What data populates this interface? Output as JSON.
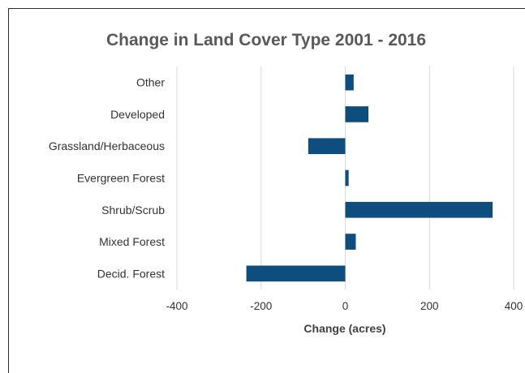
{
  "chart_data": {
    "type": "bar",
    "orientation": "horizontal",
    "title": "Change in Land Cover Type 2001 - 2016",
    "xlabel": "Change (acres)",
    "ylabel": "",
    "categories": [
      "Other",
      "Developed",
      "Grassland/Herbaceous",
      "Evergreen Forest",
      "Shrub/Scrub",
      "Mixed Forest",
      "Decid. Forest"
    ],
    "values": [
      20,
      55,
      -88,
      8,
      350,
      25,
      -235
    ],
    "xlim": [
      -400,
      400
    ],
    "xticks": [
      -400,
      -200,
      0,
      200,
      400
    ],
    "grid": "vertical",
    "legend": "none",
    "bar_color": "#0e4e7e",
    "grid_color": "#d9d9d9"
  }
}
